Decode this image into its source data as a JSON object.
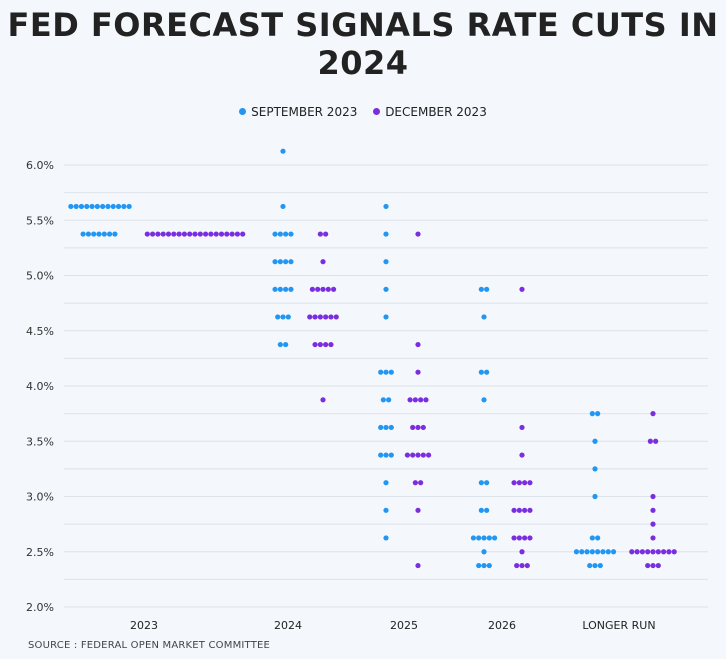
{
  "chart_data": {
    "type": "scatter",
    "title_line1": "FED FORECAST SIGNALS RATE CUTS IN",
    "title_line2": "2024",
    "source": "SOURCE : FEDERAL OPEN MARKET COMMITTEE",
    "xlabel": "",
    "ylabel": "",
    "ylim": [
      2.0,
      6.0
    ],
    "yticks": [
      "6.0%",
      "5.5%",
      "5.0%",
      "4.5%",
      "4.0%",
      "3.5%",
      "3.0%",
      "2.5%",
      "2.0%"
    ],
    "categories": [
      "2023",
      "2024",
      "2025",
      "2026",
      "LONGER RUN"
    ],
    "grid": true,
    "legend_position": "top-center",
    "series": [
      {
        "name": "SEPTEMBER 2023",
        "color": "#2196f3",
        "groups": [
          {
            "category": "2023",
            "points": [
              {
                "y": 5.625,
                "count": 12
              },
              {
                "y": 5.375,
                "count": 7
              }
            ]
          },
          {
            "category": "2024",
            "points": [
              {
                "y": 6.125,
                "count": 1
              },
              {
                "y": 5.625,
                "count": 1
              },
              {
                "y": 5.375,
                "count": 4
              },
              {
                "y": 5.125,
                "count": 4
              },
              {
                "y": 4.875,
                "count": 4
              },
              {
                "y": 4.625,
                "count": 3
              },
              {
                "y": 4.375,
                "count": 2
              }
            ]
          },
          {
            "category": "2025",
            "points": [
              {
                "y": 5.625,
                "count": 1
              },
              {
                "y": 5.375,
                "count": 1
              },
              {
                "y": 5.125,
                "count": 1
              },
              {
                "y": 4.875,
                "count": 1
              },
              {
                "y": 4.625,
                "count": 1
              },
              {
                "y": 4.125,
                "count": 3
              },
              {
                "y": 3.875,
                "count": 2
              },
              {
                "y": 3.625,
                "count": 3
              },
              {
                "y": 3.375,
                "count": 3
              },
              {
                "y": 3.125,
                "count": 1
              },
              {
                "y": 2.875,
                "count": 1
              },
              {
                "y": 2.625,
                "count": 1
              }
            ]
          },
          {
            "category": "2026",
            "points": [
              {
                "y": 4.875,
                "count": 2
              },
              {
                "y": 4.625,
                "count": 1
              },
              {
                "y": 4.125,
                "count": 2
              },
              {
                "y": 3.875,
                "count": 1
              },
              {
                "y": 3.125,
                "count": 2
              },
              {
                "y": 2.875,
                "count": 2
              },
              {
                "y": 2.625,
                "count": 5
              },
              {
                "y": 2.5,
                "count": 1
              },
              {
                "y": 2.375,
                "count": 3
              }
            ]
          },
          {
            "category": "LONGER RUN",
            "points": [
              {
                "y": 3.75,
                "count": 2
              },
              {
                "y": 3.5,
                "count": 1
              },
              {
                "y": 3.25,
                "count": 1
              },
              {
                "y": 3.0,
                "count": 1
              },
              {
                "y": 2.625,
                "count": 2
              },
              {
                "y": 2.5,
                "count": 8
              },
              {
                "y": 2.375,
                "count": 3
              }
            ]
          }
        ]
      },
      {
        "name": "DECEMBER 2023",
        "color": "#7b2ee0",
        "groups": [
          {
            "category": "2023",
            "points": [
              {
                "y": 5.375,
                "count": 19
              }
            ]
          },
          {
            "category": "2024",
            "points": [
              {
                "y": 5.375,
                "count": 2
              },
              {
                "y": 5.125,
                "count": 1
              },
              {
                "y": 4.875,
                "count": 5
              },
              {
                "y": 4.625,
                "count": 6
              },
              {
                "y": 4.375,
                "count": 4
              },
              {
                "y": 3.875,
                "count": 1
              }
            ]
          },
          {
            "category": "2025",
            "points": [
              {
                "y": 5.375,
                "count": 1
              },
              {
                "y": 4.375,
                "count": 1
              },
              {
                "y": 4.125,
                "count": 1
              },
              {
                "y": 3.875,
                "count": 4
              },
              {
                "y": 3.625,
                "count": 3
              },
              {
                "y": 3.375,
                "count": 5
              },
              {
                "y": 3.125,
                "count": 2
              },
              {
                "y": 2.875,
                "count": 1
              },
              {
                "y": 2.375,
                "count": 1
              }
            ]
          },
          {
            "category": "2026",
            "points": [
              {
                "y": 4.875,
                "count": 1
              },
              {
                "y": 3.625,
                "count": 1
              },
              {
                "y": 3.375,
                "count": 1
              },
              {
                "y": 3.125,
                "count": 4
              },
              {
                "y": 2.875,
                "count": 4
              },
              {
                "y": 2.625,
                "count": 4
              },
              {
                "y": 2.5,
                "count": 1
              },
              {
                "y": 2.375,
                "count": 3
              }
            ]
          },
          {
            "category": "LONGER RUN",
            "points": [
              {
                "y": 3.75,
                "count": 1
              },
              {
                "y": 3.5,
                "count": 2
              },
              {
                "y": 3.0,
                "count": 1
              },
              {
                "y": 2.875,
                "count": 1
              },
              {
                "y": 2.75,
                "count": 1
              },
              {
                "y": 2.625,
                "count": 1
              },
              {
                "y": 2.5,
                "count": 9
              },
              {
                "y": 2.375,
                "count": 3
              }
            ]
          }
        ]
      }
    ]
  }
}
